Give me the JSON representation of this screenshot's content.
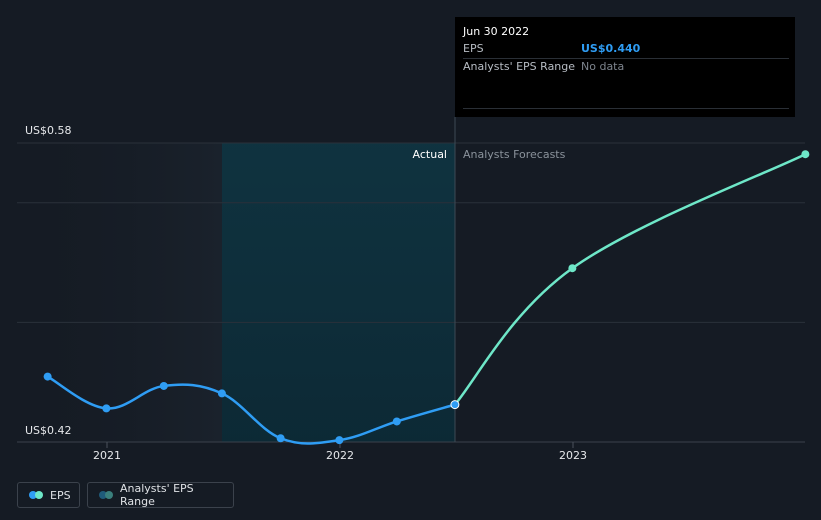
{
  "chart_data": {
    "type": "line",
    "ylabel_top": "US$0.58",
    "ylabel_bottom": "US$0.42",
    "ylim": [
      0.42,
      0.58
    ],
    "xticks": [
      "2021",
      "2022",
      "2023"
    ],
    "actual_label": "Actual",
    "forecast_label": "Analysts Forecasts",
    "series": [
      {
        "name": "EPS",
        "kind": "actual",
        "color": "#2f9df4",
        "points": [
          {
            "x": "2020-09-30",
            "y": 0.455
          },
          {
            "x": "2020-12-31",
            "y": 0.438
          },
          {
            "x": "2021-03-31",
            "y": 0.45
          },
          {
            "x": "2021-06-30",
            "y": 0.446
          },
          {
            "x": "2021-09-30",
            "y": 0.422
          },
          {
            "x": "2021-12-31",
            "y": 0.421
          },
          {
            "x": "2022-03-31",
            "y": 0.431
          },
          {
            "x": "2022-06-30",
            "y": 0.44
          }
        ]
      },
      {
        "name": "EPS",
        "kind": "forecast",
        "color": "#6ee7c8",
        "points": [
          {
            "x": "2022-06-30",
            "y": 0.44
          },
          {
            "x": "2022-12-31",
            "y": 0.513
          },
          {
            "x": "2023-12-31",
            "y": 0.574
          }
        ]
      }
    ]
  },
  "tooltip": {
    "date": "Jun 30 2022",
    "eps_label": "EPS",
    "eps_value": "US$0.440",
    "range_label": "Analysts' EPS Range",
    "range_value": "No data"
  },
  "legend": {
    "eps_label": "EPS",
    "range_label": "Analysts' EPS Range",
    "eps_colors": [
      "#2f9df4",
      "#6ee7c8"
    ],
    "range_colors": [
      "#1f5b7a",
      "#3a7f7c"
    ]
  }
}
